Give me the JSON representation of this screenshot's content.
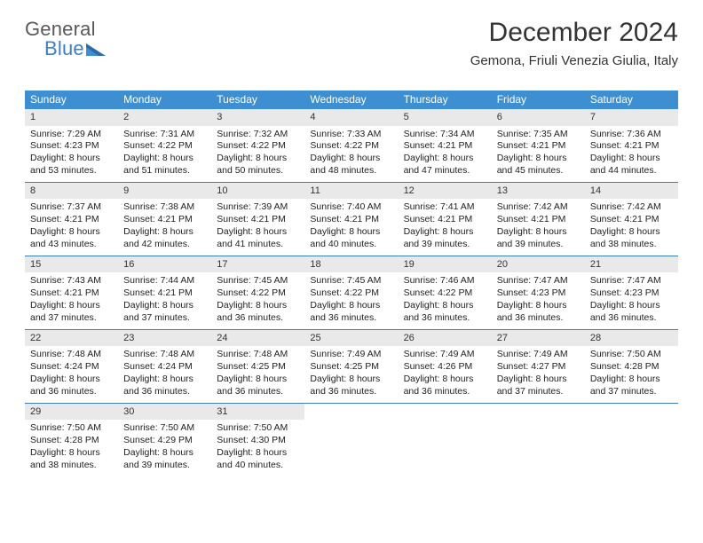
{
  "logo": {
    "line1": "General",
    "line2": "Blue"
  },
  "header": {
    "title": "December 2024",
    "location": "Gemona, Friuli Venezia Giulia, Italy"
  },
  "colors": {
    "header_bar": "#3d8fd1",
    "week_divider": "#3d7fb9",
    "daynum_bg": "#e9e9e9",
    "logo_gray": "#5a5a5a",
    "logo_blue": "#3d7fc4"
  },
  "day_names": [
    "Sunday",
    "Monday",
    "Tuesday",
    "Wednesday",
    "Thursday",
    "Friday",
    "Saturday"
  ],
  "labels": {
    "sunrise": "Sunrise:",
    "sunset": "Sunset:",
    "daylight": "Daylight:"
  },
  "days": [
    {
      "n": 1,
      "sunrise": "7:29 AM",
      "sunset": "4:23 PM",
      "day_h": 8,
      "day_m": 53
    },
    {
      "n": 2,
      "sunrise": "7:31 AM",
      "sunset": "4:22 PM",
      "day_h": 8,
      "day_m": 51
    },
    {
      "n": 3,
      "sunrise": "7:32 AM",
      "sunset": "4:22 PM",
      "day_h": 8,
      "day_m": 50
    },
    {
      "n": 4,
      "sunrise": "7:33 AM",
      "sunset": "4:22 PM",
      "day_h": 8,
      "day_m": 48
    },
    {
      "n": 5,
      "sunrise": "7:34 AM",
      "sunset": "4:21 PM",
      "day_h": 8,
      "day_m": 47
    },
    {
      "n": 6,
      "sunrise": "7:35 AM",
      "sunset": "4:21 PM",
      "day_h": 8,
      "day_m": 45
    },
    {
      "n": 7,
      "sunrise": "7:36 AM",
      "sunset": "4:21 PM",
      "day_h": 8,
      "day_m": 44
    },
    {
      "n": 8,
      "sunrise": "7:37 AM",
      "sunset": "4:21 PM",
      "day_h": 8,
      "day_m": 43
    },
    {
      "n": 9,
      "sunrise": "7:38 AM",
      "sunset": "4:21 PM",
      "day_h": 8,
      "day_m": 42
    },
    {
      "n": 10,
      "sunrise": "7:39 AM",
      "sunset": "4:21 PM",
      "day_h": 8,
      "day_m": 41
    },
    {
      "n": 11,
      "sunrise": "7:40 AM",
      "sunset": "4:21 PM",
      "day_h": 8,
      "day_m": 40
    },
    {
      "n": 12,
      "sunrise": "7:41 AM",
      "sunset": "4:21 PM",
      "day_h": 8,
      "day_m": 39
    },
    {
      "n": 13,
      "sunrise": "7:42 AM",
      "sunset": "4:21 PM",
      "day_h": 8,
      "day_m": 39
    },
    {
      "n": 14,
      "sunrise": "7:42 AM",
      "sunset": "4:21 PM",
      "day_h": 8,
      "day_m": 38
    },
    {
      "n": 15,
      "sunrise": "7:43 AM",
      "sunset": "4:21 PM",
      "day_h": 8,
      "day_m": 37
    },
    {
      "n": 16,
      "sunrise": "7:44 AM",
      "sunset": "4:21 PM",
      "day_h": 8,
      "day_m": 37
    },
    {
      "n": 17,
      "sunrise": "7:45 AM",
      "sunset": "4:22 PM",
      "day_h": 8,
      "day_m": 36
    },
    {
      "n": 18,
      "sunrise": "7:45 AM",
      "sunset": "4:22 PM",
      "day_h": 8,
      "day_m": 36
    },
    {
      "n": 19,
      "sunrise": "7:46 AM",
      "sunset": "4:22 PM",
      "day_h": 8,
      "day_m": 36
    },
    {
      "n": 20,
      "sunrise": "7:47 AM",
      "sunset": "4:23 PM",
      "day_h": 8,
      "day_m": 36
    },
    {
      "n": 21,
      "sunrise": "7:47 AM",
      "sunset": "4:23 PM",
      "day_h": 8,
      "day_m": 36
    },
    {
      "n": 22,
      "sunrise": "7:48 AM",
      "sunset": "4:24 PM",
      "day_h": 8,
      "day_m": 36
    },
    {
      "n": 23,
      "sunrise": "7:48 AM",
      "sunset": "4:24 PM",
      "day_h": 8,
      "day_m": 36
    },
    {
      "n": 24,
      "sunrise": "7:48 AM",
      "sunset": "4:25 PM",
      "day_h": 8,
      "day_m": 36
    },
    {
      "n": 25,
      "sunrise": "7:49 AM",
      "sunset": "4:25 PM",
      "day_h": 8,
      "day_m": 36
    },
    {
      "n": 26,
      "sunrise": "7:49 AM",
      "sunset": "4:26 PM",
      "day_h": 8,
      "day_m": 36
    },
    {
      "n": 27,
      "sunrise": "7:49 AM",
      "sunset": "4:27 PM",
      "day_h": 8,
      "day_m": 37
    },
    {
      "n": 28,
      "sunrise": "7:50 AM",
      "sunset": "4:28 PM",
      "day_h": 8,
      "day_m": 37
    },
    {
      "n": 29,
      "sunrise": "7:50 AM",
      "sunset": "4:28 PM",
      "day_h": 8,
      "day_m": 38
    },
    {
      "n": 30,
      "sunrise": "7:50 AM",
      "sunset": "4:29 PM",
      "day_h": 8,
      "day_m": 39
    },
    {
      "n": 31,
      "sunrise": "7:50 AM",
      "sunset": "4:30 PM",
      "day_h": 8,
      "day_m": 40
    }
  ],
  "grid": {
    "start_weekday": 0,
    "rows": 5,
    "cols": 7
  }
}
